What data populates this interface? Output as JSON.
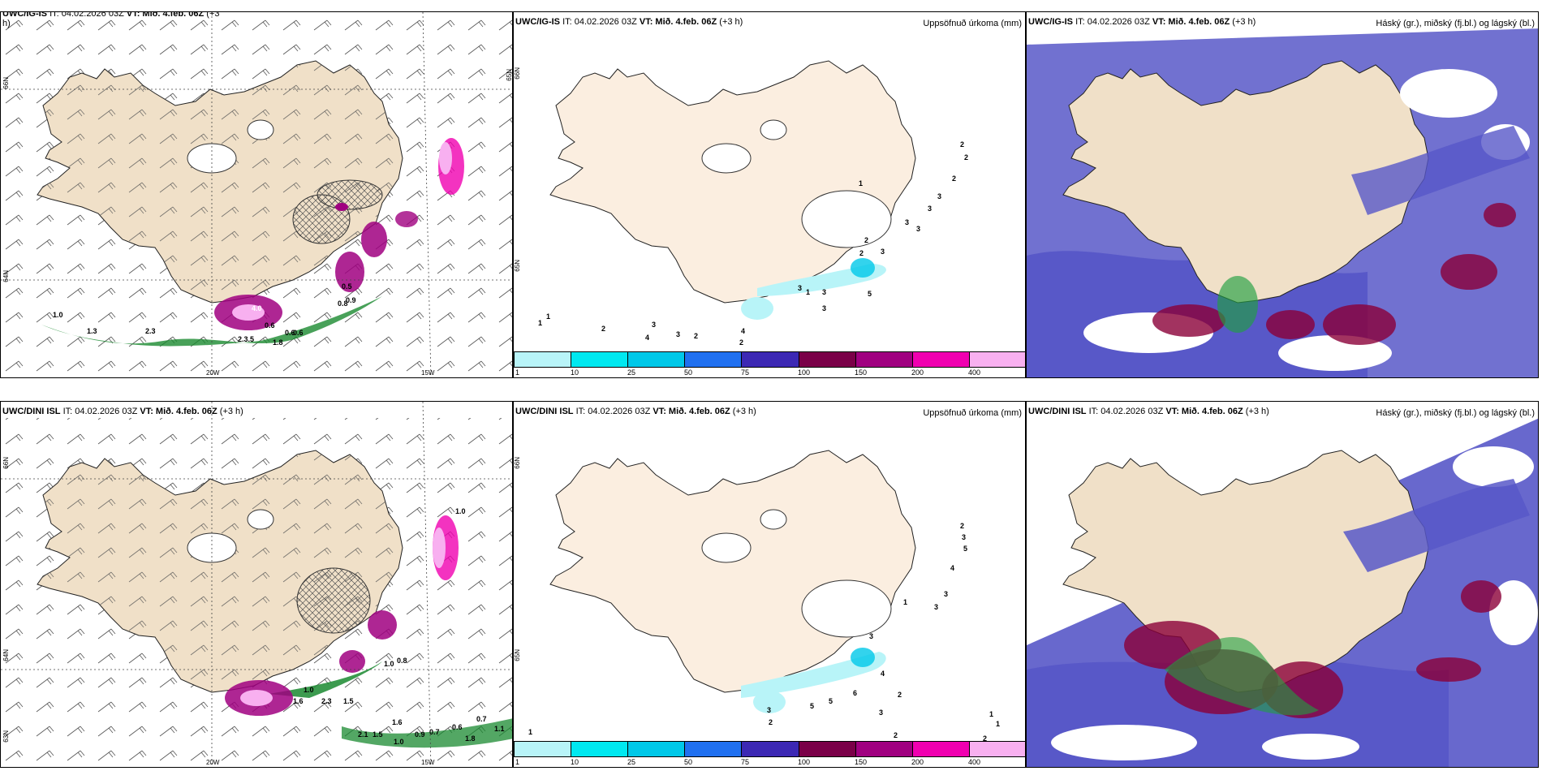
{
  "colors": {
    "land": "#f0e0c8",
    "land_alt": "#fbeee0",
    "precip": [
      "#b8f4f8",
      "#00e8f0",
      "#00c8e8",
      "#2070f0",
      "#3c28b4",
      "#7a0048",
      "#a00080",
      "#f000b0",
      "#f8b0f0"
    ],
    "cloud_high": "#5858c8",
    "cloud_mid": "#8b0038",
    "cloud_low": "#20a040",
    "wind_green": "#1a8a30"
  },
  "panels": {
    "p1": {
      "model": "UWC/IG-IS",
      "init": "IT: 04.02.2026 03Z",
      "valid_label": "VT: Mið. 4.feb. 06Z",
      "lead": "(+3",
      "lead2": "h)",
      "lat_labels": [
        "66N",
        "64N",
        "65N"
      ],
      "lon_labels": [
        "20W",
        "15W"
      ],
      "values": [
        "1.0",
        "1.3",
        "2.3",
        "0.6",
        "2.3.5",
        "1.8",
        "0.6",
        "0.9",
        "0.8",
        "0.6",
        "4.0",
        "0.5"
      ]
    },
    "p2": {
      "model": "UWC/IG-IS",
      "init": "IT: 04.02.2026 03Z",
      "valid_label": "VT: Mið. 4.feb. 06Z",
      "lead": "(+3 h)",
      "field_title": "Uppsöfnuð úrkoma (mm)",
      "lat_labels": [
        "66N",
        "65N"
      ],
      "values": [
        "1",
        "2",
        "2",
        "2",
        "3",
        "3",
        "3",
        "3",
        "2",
        "2",
        "3",
        "3",
        "3",
        "1",
        "5",
        "3",
        "4",
        "3",
        "2",
        "2",
        "3",
        "4",
        "2",
        "1",
        "1"
      ]
    },
    "p3": {
      "model": "UWC/IG-IS",
      "init": "IT: 04.02.2026 03Z",
      "valid_label": "VT: Mið. 4.feb. 06Z",
      "lead": "(+3 h)",
      "field_title": "Háský (gr.), miðský (fj.bl.) og lágský (bl.)"
    },
    "p4": {
      "model": "UWC/DINI ISL",
      "init": "IT: 04.02.2026 03Z",
      "valid_label": "VT: Mið. 4.feb. 06Z",
      "lead": "(+3 h)",
      "lat_labels": [
        "66N",
        "64N",
        "63N"
      ],
      "lon_labels": [
        "20W",
        "15W"
      ],
      "values": [
        "1.0",
        "1.6",
        "2.3",
        "1.5",
        "2.1",
        "1.5",
        "1.0",
        "0.9",
        "0.7",
        "0.6",
        "1.8",
        "0.7",
        "1.1",
        "1.0",
        "0.8",
        "1.6",
        "1.0"
      ]
    },
    "p5": {
      "model": "UWC/DINI ISL",
      "init": "IT: 04.02.2026 03Z",
      "valid_label": "VT: Mið. 4.feb. 06Z",
      "lead": "(+3 h)",
      "field_title": "Uppsöfnuð úrkoma (mm)",
      "lat_labels": [
        "66N",
        "65N"
      ],
      "values": [
        "2",
        "3",
        "5",
        "4",
        "3",
        "3",
        "1",
        "3",
        "4",
        "2",
        "6",
        "5",
        "5",
        "3",
        "2",
        "2",
        "3",
        "1",
        "1",
        "2",
        "1"
      ]
    },
    "p6": {
      "model": "UWC/DINI ISL",
      "init": "IT: 04.02.2026 03Z",
      "valid_label": "VT: Mið. 4.feb. 06Z",
      "lead": "(+3 h)",
      "field_title": "Háský (gr.), miðský (fj.bl.) og lágský (bl.)"
    }
  },
  "colorbar": {
    "ticks": [
      "1",
      "10",
      "25",
      "50",
      "75",
      "100",
      "150",
      "200",
      "400"
    ]
  }
}
